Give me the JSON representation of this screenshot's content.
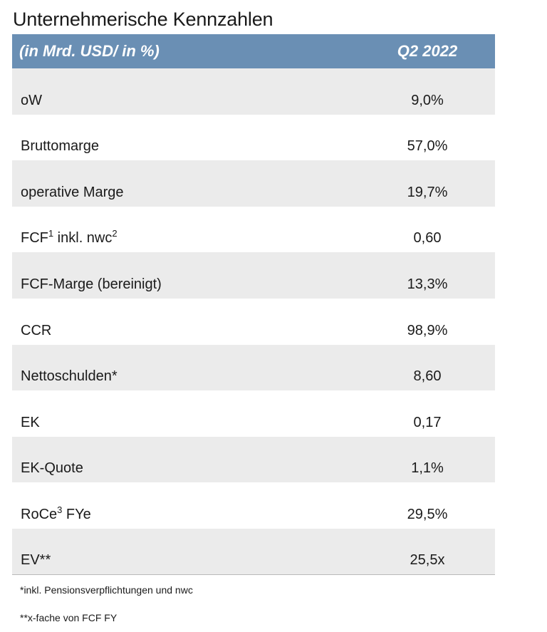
{
  "title": "Unternehmerische Kennzahlen",
  "header": {
    "label": "(in Mrd. USD/ in %)",
    "period": "Q2 2022"
  },
  "rows": [
    {
      "label": "oW",
      "value": "9,0%"
    },
    {
      "label": "Bruttomarge",
      "value": "57,0%"
    },
    {
      "label": "operative Marge",
      "value": "19,7%"
    },
    {
      "label": "FCF",
      "sup1": "1",
      "label_mid": " inkl. nwc",
      "sup2": "2",
      "value": "0,60"
    },
    {
      "label": "FCF-Marge (bereinigt)",
      "value": "13,3%"
    },
    {
      "label": "CCR",
      "value": "98,9%"
    },
    {
      "label": "Nettoschulden*",
      "value": "8,60"
    },
    {
      "label": "EK",
      "value": "0,17"
    },
    {
      "label": "EK-Quote",
      "value": "1,1%"
    },
    {
      "label": "RoCe",
      "sup1": "3",
      "label_mid": " FYe",
      "value": "29,5%"
    },
    {
      "label": "EV**",
      "value": "25,5x"
    }
  ],
  "footnotes": [
    "*inkl. Pensionsverpflichtungen und nwc",
    "**x-fache von FCF FY"
  ]
}
